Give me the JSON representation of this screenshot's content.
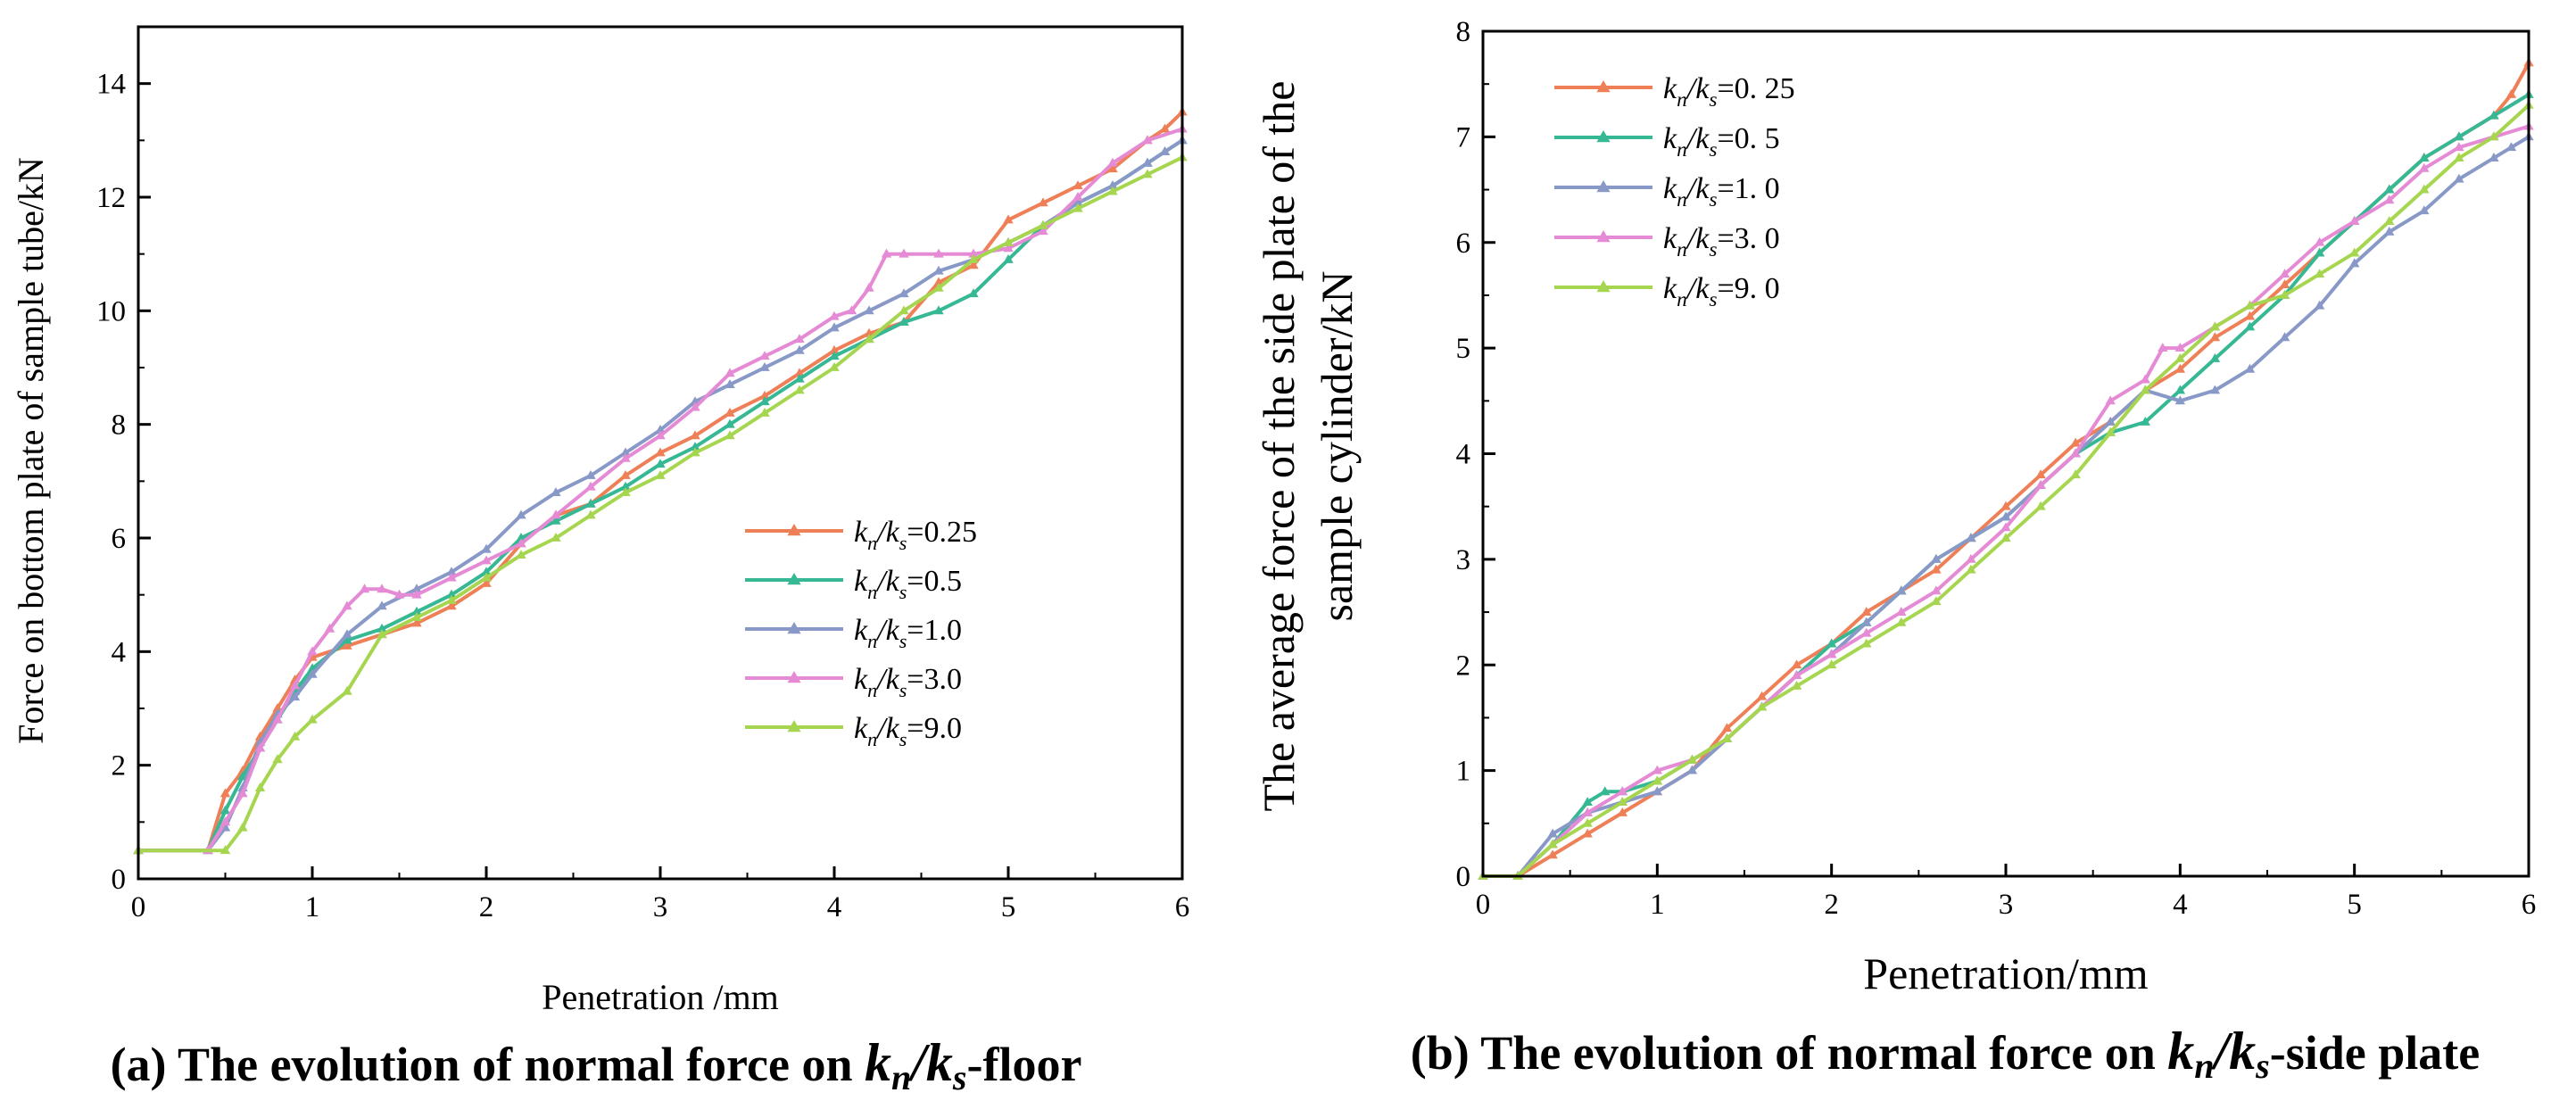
{
  "colors": {
    "kn0_25": "#ee7f57",
    "kn0_5": "#35b893",
    "kn1_0": "#8899c8",
    "kn3_0": "#e58ad4",
    "kn9_0": "#a6d64f"
  },
  "captions": {
    "a": {
      "prefix": "(a) The evolution of normal force on ",
      "kn": "k",
      "kn_sub": "n",
      "slash": "/",
      "ks": "k",
      "ks_sub": "s",
      "suffix": "-floor"
    },
    "b": {
      "prefix": "(b) The evolution of normal force on ",
      "kn": "k",
      "kn_sub": "n",
      "slash": "/",
      "ks": "k",
      "ks_sub": "s",
      "suffix": "-side plate"
    }
  },
  "chart_data": [
    {
      "type": "line",
      "xlabel": "Penetration /mm",
      "ylabel": "Force on bottom plate of sample tube/kN",
      "xlim": [
        0,
        6
      ],
      "ylim": [
        0,
        15
      ],
      "xticks": [
        "0",
        "1",
        "2",
        "3",
        "4",
        "5",
        "6"
      ],
      "yticks": [
        "0",
        "2",
        "4",
        "6",
        "8",
        "10",
        "12",
        "14"
      ],
      "legend_position": "center-right",
      "series": [
        {
          "name": "kn/ks=0.25",
          "label_num": "=0.25",
          "color_key": "kn0_25",
          "x": [
            0,
            0.4,
            0.5,
            0.6,
            0.7,
            0.8,
            0.9,
            1.0,
            1.2,
            1.4,
            1.6,
            1.8,
            2.0,
            2.2,
            2.4,
            2.6,
            2.8,
            3.0,
            3.2,
            3.4,
            3.6,
            3.8,
            4.0,
            4.2,
            4.4,
            4.6,
            4.8,
            5.0,
            5.2,
            5.4,
            5.6,
            5.8,
            5.9,
            6.0
          ],
          "y": [
            0.5,
            0.5,
            1.5,
            1.9,
            2.5,
            3.0,
            3.5,
            3.9,
            4.1,
            4.3,
            4.5,
            4.8,
            5.2,
            5.9,
            6.4,
            6.6,
            7.1,
            7.5,
            7.8,
            8.2,
            8.5,
            8.9,
            9.3,
            9.6,
            9.8,
            10.5,
            10.8,
            11.6,
            11.9,
            12.2,
            12.5,
            13.0,
            13.2,
            13.5
          ]
        },
        {
          "name": "kn/ks=0.5",
          "label_num": "=0.5",
          "color_key": "kn0_5",
          "x": [
            0,
            0.4,
            0.5,
            0.6,
            0.7,
            0.8,
            0.9,
            1.0,
            1.2,
            1.4,
            1.6,
            1.8,
            2.0,
            2.2,
            2.4,
            2.6,
            2.8,
            3.0,
            3.2,
            3.4,
            3.6,
            3.8,
            4.0,
            4.2,
            4.4,
            4.6,
            4.8,
            5.0,
            5.2,
            5.4,
            5.6,
            5.8,
            5.9,
            6.0
          ],
          "y": [
            0.5,
            0.5,
            1.2,
            1.8,
            2.3,
            2.8,
            3.3,
            3.7,
            4.2,
            4.4,
            4.7,
            5.0,
            5.4,
            6.0,
            6.3,
            6.6,
            6.9,
            7.3,
            7.6,
            8.0,
            8.4,
            8.8,
            9.2,
            9.5,
            9.8,
            10.0,
            10.3,
            10.9,
            11.5,
            11.9,
            12.2,
            12.6,
            12.8,
            13.0
          ]
        },
        {
          "name": "kn/ks=1.0",
          "label_num": "=1.0",
          "color_key": "kn1_0",
          "x": [
            0,
            0.4,
            0.5,
            0.6,
            0.7,
            0.8,
            0.9,
            1.0,
            1.2,
            1.4,
            1.6,
            1.8,
            2.0,
            2.2,
            2.4,
            2.6,
            2.8,
            3.0,
            3.2,
            3.4,
            3.6,
            3.8,
            4.0,
            4.2,
            4.4,
            4.6,
            4.8,
            5.0,
            5.2,
            5.4,
            5.6,
            5.8,
            5.9,
            6.0
          ],
          "y": [
            0.5,
            0.5,
            0.9,
            1.6,
            2.4,
            2.9,
            3.2,
            3.6,
            4.3,
            4.8,
            5.1,
            5.4,
            5.8,
            6.4,
            6.8,
            7.1,
            7.5,
            7.9,
            8.4,
            8.7,
            9.0,
            9.3,
            9.7,
            10.0,
            10.3,
            10.7,
            10.9,
            11.2,
            11.5,
            11.9,
            12.2,
            12.6,
            12.8,
            13.0
          ]
        },
        {
          "name": "kn/ks=3.0",
          "label_num": "=3.0",
          "color_key": "kn3_0",
          "x": [
            0,
            0.4,
            0.5,
            0.6,
            0.7,
            0.8,
            0.9,
            1.0,
            1.1,
            1.2,
            1.3,
            1.4,
            1.5,
            1.6,
            1.8,
            2.0,
            2.2,
            2.4,
            2.6,
            2.8,
            3.0,
            3.2,
            3.4,
            3.6,
            3.8,
            4.0,
            4.1,
            4.2,
            4.3,
            4.4,
            4.6,
            4.8,
            5.0,
            5.2,
            5.4,
            5.6,
            5.8,
            6.0
          ],
          "y": [
            0.5,
            0.5,
            1.0,
            1.5,
            2.3,
            2.8,
            3.4,
            4.0,
            4.4,
            4.8,
            5.1,
            5.1,
            5.0,
            5.0,
            5.3,
            5.6,
            5.9,
            6.4,
            6.9,
            7.4,
            7.8,
            8.3,
            8.9,
            9.2,
            9.5,
            9.9,
            10.0,
            10.4,
            11.0,
            11.0,
            11.0,
            11.0,
            11.1,
            11.4,
            12.0,
            12.6,
            13.0,
            13.2
          ]
        },
        {
          "name": "kn/ks=9.0",
          "label_num": "=9.0",
          "color_key": "kn9_0",
          "x": [
            0,
            0.5,
            0.6,
            0.7,
            0.8,
            0.9,
            1.0,
            1.2,
            1.4,
            1.6,
            1.8,
            2.0,
            2.2,
            2.4,
            2.6,
            2.8,
            3.0,
            3.2,
            3.4,
            3.6,
            3.8,
            4.0,
            4.2,
            4.4,
            4.6,
            4.8,
            5.0,
            5.2,
            5.4,
            5.6,
            5.8,
            6.0
          ],
          "y": [
            0.5,
            0.5,
            0.9,
            1.6,
            2.1,
            2.5,
            2.8,
            3.3,
            4.3,
            4.6,
            4.9,
            5.3,
            5.7,
            6.0,
            6.4,
            6.8,
            7.1,
            7.5,
            7.8,
            8.2,
            8.6,
            9.0,
            9.5,
            10.0,
            10.4,
            10.9,
            11.2,
            11.5,
            11.8,
            12.1,
            12.4,
            12.7
          ]
        }
      ]
    },
    {
      "type": "line",
      "xlabel": "Penetration/mm",
      "ylabel_line1": "The average force of the side plate of the",
      "ylabel_line2": "sample cylinder/kN",
      "xlim": [
        0,
        6
      ],
      "ylim": [
        0,
        8
      ],
      "xticks": [
        "0",
        "1",
        "2",
        "3",
        "4",
        "5",
        "6"
      ],
      "yticks": [
        "0",
        "1",
        "2",
        "3",
        "4",
        "5",
        "6",
        "7",
        "8"
      ],
      "legend_position": "top-left",
      "series": [
        {
          "name": "kn/ks=0.25",
          "label_num": "=0. 25",
          "color_key": "kn0_25",
          "x": [
            0,
            0.2,
            0.4,
            0.6,
            0.8,
            1.0,
            1.2,
            1.4,
            1.6,
            1.8,
            2.0,
            2.2,
            2.4,
            2.6,
            2.8,
            3.0,
            3.2,
            3.4,
            3.6,
            3.8,
            4.0,
            4.2,
            4.4,
            4.6,
            4.8,
            5.0,
            5.2,
            5.4,
            5.6,
            5.8,
            5.9,
            6.0
          ],
          "y": [
            0,
            0,
            0.2,
            0.4,
            0.6,
            0.8,
            1.0,
            1.4,
            1.7,
            2.0,
            2.2,
            2.5,
            2.7,
            2.9,
            3.2,
            3.5,
            3.8,
            4.1,
            4.3,
            4.6,
            4.8,
            5.1,
            5.3,
            5.6,
            5.9,
            6.2,
            6.5,
            6.8,
            7.0,
            7.2,
            7.4,
            7.7
          ]
        },
        {
          "name": "kn/ks=0.5",
          "label_num": "=0. 5",
          "color_key": "kn0_5",
          "x": [
            0,
            0.2,
            0.4,
            0.6,
            0.7,
            0.8,
            1.0,
            1.2,
            1.4,
            1.6,
            1.8,
            2.0,
            2.2,
            2.4,
            2.6,
            2.8,
            3.0,
            3.2,
            3.4,
            3.6,
            3.8,
            4.0,
            4.2,
            4.4,
            4.6,
            4.8,
            5.0,
            5.2,
            5.4,
            5.6,
            5.8,
            6.0
          ],
          "y": [
            0,
            0,
            0.3,
            0.7,
            0.8,
            0.8,
            0.9,
            1.1,
            1.3,
            1.6,
            1.9,
            2.2,
            2.4,
            2.7,
            3.0,
            3.2,
            3.4,
            3.7,
            4.0,
            4.2,
            4.3,
            4.6,
            4.9,
            5.2,
            5.5,
            5.9,
            6.2,
            6.5,
            6.8,
            7.0,
            7.2,
            7.4
          ]
        },
        {
          "name": "kn/ks=1.0",
          "label_num": "=1. 0",
          "color_key": "kn1_0",
          "x": [
            0,
            0.2,
            0.4,
            0.6,
            0.8,
            1.0,
            1.2,
            1.4,
            1.6,
            1.8,
            2.0,
            2.2,
            2.4,
            2.6,
            2.8,
            3.0,
            3.2,
            3.4,
            3.6,
            3.8,
            4.0,
            4.2,
            4.4,
            4.6,
            4.8,
            5.0,
            5.2,
            5.4,
            5.6,
            5.8,
            5.9,
            6.0
          ],
          "y": [
            0,
            0,
            0.4,
            0.6,
            0.7,
            0.8,
            1.0,
            1.3,
            1.6,
            1.9,
            2.1,
            2.4,
            2.7,
            3.0,
            3.2,
            3.4,
            3.7,
            4.0,
            4.3,
            4.6,
            4.5,
            4.6,
            4.8,
            5.1,
            5.4,
            5.8,
            6.1,
            6.3,
            6.6,
            6.8,
            6.9,
            7.0
          ]
        },
        {
          "name": "kn/ks=3.0",
          "label_num": "=3. 0",
          "color_key": "kn3_0",
          "x": [
            0,
            0.2,
            0.4,
            0.6,
            0.8,
            1.0,
            1.2,
            1.4,
            1.6,
            1.8,
            2.0,
            2.2,
            2.4,
            2.6,
            2.8,
            3.0,
            3.2,
            3.4,
            3.6,
            3.8,
            3.9,
            4.0,
            4.2,
            4.4,
            4.6,
            4.8,
            5.0,
            5.2,
            5.4,
            5.6,
            5.8,
            6.0
          ],
          "y": [
            0,
            0,
            0.3,
            0.6,
            0.8,
            1.0,
            1.1,
            1.3,
            1.6,
            1.9,
            2.1,
            2.3,
            2.5,
            2.7,
            3.0,
            3.3,
            3.7,
            4.0,
            4.5,
            4.7,
            5.0,
            5.0,
            5.2,
            5.4,
            5.7,
            6.0,
            6.2,
            6.4,
            6.7,
            6.9,
            7.0,
            7.1
          ]
        },
        {
          "name": "kn/ks=9.0",
          "label_num": "=9. 0",
          "color_key": "kn9_0",
          "x": [
            0,
            0.2,
            0.4,
            0.6,
            0.8,
            1.0,
            1.2,
            1.4,
            1.6,
            1.8,
            2.0,
            2.2,
            2.4,
            2.6,
            2.8,
            3.0,
            3.2,
            3.4,
            3.6,
            3.8,
            4.0,
            4.2,
            4.4,
            4.6,
            4.8,
            5.0,
            5.2,
            5.4,
            5.6,
            5.8,
            6.0
          ],
          "y": [
            0,
            0,
            0.3,
            0.5,
            0.7,
            0.9,
            1.1,
            1.3,
            1.6,
            1.8,
            2.0,
            2.2,
            2.4,
            2.6,
            2.9,
            3.2,
            3.5,
            3.8,
            4.2,
            4.6,
            4.9,
            5.2,
            5.4,
            5.5,
            5.7,
            5.9,
            6.2,
            6.5,
            6.8,
            7.0,
            7.3
          ]
        }
      ]
    }
  ]
}
